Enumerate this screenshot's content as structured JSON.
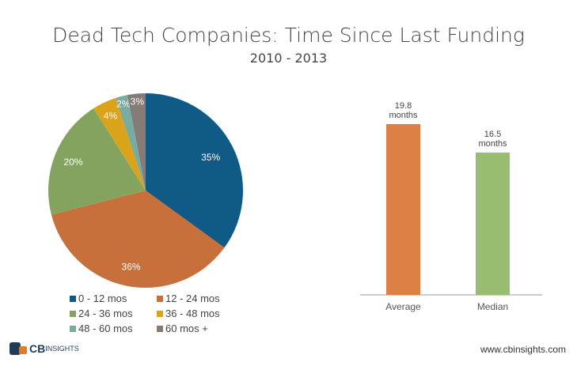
{
  "chart_data": [
    {
      "type": "pie",
      "title": "Dead Tech Companies: Time Since Last Funding",
      "subtitle": "2010 - 2013",
      "categories": [
        "0 - 12 mos",
        "12 - 24 mos",
        "24 - 36 mos",
        "36 - 48 mos",
        "48 - 60 mos",
        "60 mos +"
      ],
      "values": [
        35,
        36,
        20,
        4,
        2,
        3
      ],
      "labels": [
        "35%",
        "36%",
        "20%",
        "4%",
        "2%",
        "3%"
      ],
      "colors": [
        "#0f5a87",
        "#c8703c",
        "#84a35f",
        "#dba319",
        "#7aaba0",
        "#857b77"
      ],
      "legend_placement": "bottom"
    },
    {
      "type": "bar",
      "categories": [
        "Average",
        "Median"
      ],
      "values": [
        19.8,
        16.5
      ],
      "data_labels": [
        "19.8 months",
        "16.5 months"
      ],
      "colors": [
        "#dd8046",
        "#97bc72"
      ],
      "ylim": [
        0,
        20
      ],
      "grid": false
    }
  ],
  "footer": {
    "brand": "CBINSIGHTS",
    "brand_bold": "CB",
    "brand_rest": "INSIGHTS",
    "url": "www.cbinsights.com"
  }
}
